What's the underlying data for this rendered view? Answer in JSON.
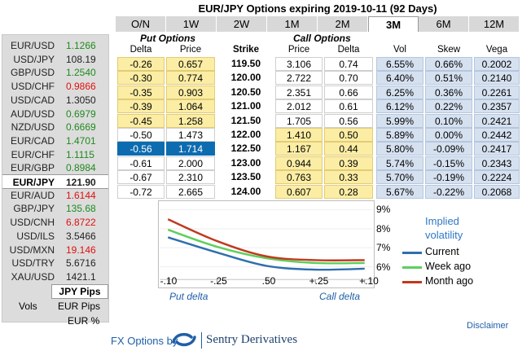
{
  "title": "EUR/JPY Options expiring 2019-10-11 (92 Days)",
  "tabs": [
    "O/N",
    "1W",
    "2W",
    "1M",
    "2M",
    "3M",
    "6M",
    "12M"
  ],
  "active_tab": "3M",
  "pairs": [
    {
      "name": "EUR/USD",
      "price": "1.1266",
      "dir": "up"
    },
    {
      "name": "USD/JPY",
      "price": "108.19",
      "dir": "nc"
    },
    {
      "name": "GBP/USD",
      "price": "1.2540",
      "dir": "up"
    },
    {
      "name": "USD/CHF",
      "price": "0.9866",
      "dir": "dn"
    },
    {
      "name": "USD/CAD",
      "price": "1.3050",
      "dir": "nc"
    },
    {
      "name": "AUD/USD",
      "price": "0.6979",
      "dir": "up"
    },
    {
      "name": "NZD/USD",
      "price": "0.6669",
      "dir": "up"
    },
    {
      "name": "EUR/CAD",
      "price": "1.4701",
      "dir": "up"
    },
    {
      "name": "EUR/CHF",
      "price": "1.1115",
      "dir": "up"
    },
    {
      "name": "EUR/GBP",
      "price": "0.8984",
      "dir": "up"
    },
    {
      "name": "EUR/JPY",
      "price": "121.90",
      "dir": "up",
      "selected": true
    },
    {
      "name": "EUR/AUD",
      "price": "1.6144",
      "dir": "dn"
    },
    {
      "name": "GBP/JPY",
      "price": "135.68",
      "dir": "up"
    },
    {
      "name": "USD/CNH",
      "price": "6.8722",
      "dir": "dn"
    },
    {
      "name": "USD/ILS",
      "price": "3.5466",
      "dir": "nc"
    },
    {
      "name": "USD/MXN",
      "price": "19.146",
      "dir": "dn"
    },
    {
      "name": "USD/TRY",
      "price": "5.6716",
      "dir": "nc"
    },
    {
      "name": "XAU/USD",
      "price": "1421.1",
      "dir": "nc"
    }
  ],
  "pips_button": "JPY Pips",
  "vols_label": "Vols",
  "vol_options": [
    "EUR Pips",
    "EUR %"
  ],
  "headers": {
    "put_options": "Put Options",
    "call_options": "Call Options",
    "columns": [
      "Delta",
      "Price",
      "Strike",
      "Price",
      "Delta",
      "Vol",
      "Skew",
      "Vega"
    ]
  },
  "rows": [
    {
      "put_delta": "-0.26",
      "put_price": "0.657",
      "strike": "119.50",
      "call_price": "3.106",
      "call_delta": "0.74",
      "vol": "6.55%",
      "skew": "0.66%",
      "vega": "0.2002"
    },
    {
      "put_delta": "-0.30",
      "put_price": "0.774",
      "strike": "120.00",
      "call_price": "2.722",
      "call_delta": "0.70",
      "vol": "6.40%",
      "skew": "0.51%",
      "vega": "0.2140"
    },
    {
      "put_delta": "-0.35",
      "put_price": "0.903",
      "strike": "120.50",
      "call_price": "2.351",
      "call_delta": "0.66",
      "vol": "6.25%",
      "skew": "0.36%",
      "vega": "0.2261"
    },
    {
      "put_delta": "-0.39",
      "put_price": "1.064",
      "strike": "121.00",
      "call_price": "2.012",
      "call_delta": "0.61",
      "vol": "6.12%",
      "skew": "0.22%",
      "vega": "0.2357"
    },
    {
      "put_delta": "-0.45",
      "put_price": "1.258",
      "strike": "121.50",
      "call_price": "1.705",
      "call_delta": "0.56",
      "vol": "5.99%",
      "skew": "0.10%",
      "vega": "0.2421"
    },
    {
      "put_delta": "-0.50",
      "put_price": "1.473",
      "strike": "122.00",
      "call_price": "1.410",
      "call_delta": "0.50",
      "vol": "5.89%",
      "skew": "0.00%",
      "vega": "0.2442"
    },
    {
      "put_delta": "-0.56",
      "put_price": "1.714",
      "strike": "122.50",
      "call_price": "1.167",
      "call_delta": "0.44",
      "vol": "5.80%",
      "skew": "-0.09%",
      "vega": "0.2417",
      "highlight": true
    },
    {
      "put_delta": "-0.61",
      "put_price": "2.000",
      "strike": "123.00",
      "call_price": "0.944",
      "call_delta": "0.39",
      "vol": "5.74%",
      "skew": "-0.15%",
      "vega": "0.2343"
    },
    {
      "put_delta": "-0.67",
      "put_price": "2.310",
      "strike": "123.50",
      "call_price": "0.763",
      "call_delta": "0.33",
      "vol": "5.70%",
      "skew": "-0.19%",
      "vega": "0.2224"
    },
    {
      "put_delta": "-0.72",
      "put_price": "2.665",
      "strike": "124.00",
      "call_price": "0.607",
      "call_delta": "0.28",
      "vol": "5.67%",
      "skew": "-0.22%",
      "vega": "0.2068"
    }
  ],
  "chart_data": {
    "type": "line",
    "title": "Implied volatility",
    "x": [
      "-.10",
      "-.25",
      ".50",
      "+.25",
      "+.10"
    ],
    "x_group_labels": [
      "Put delta",
      "Call delta"
    ],
    "y_ticks": [
      "9%",
      "8%",
      "7%",
      "6%"
    ],
    "ylim": [
      5.5,
      9.2
    ],
    "series": [
      {
        "name": "Current",
        "color": "#2f6fad",
        "values": [
          7.55,
          6.75,
          6.05,
          5.85,
          5.9
        ]
      },
      {
        "name": "Week ago",
        "color": "#5ccf5c",
        "values": [
          7.95,
          7.05,
          6.45,
          6.2,
          6.2
        ]
      },
      {
        "name": "Month ago",
        "color": "#c0391e",
        "values": [
          8.5,
          7.35,
          6.55,
          6.35,
          6.35
        ]
      }
    ]
  },
  "footer": {
    "disclaimer": "Disclaimer",
    "brand_prefix": "FX Options by",
    "brand_name": "Sentry Derivatives",
    "logo_icon": "sentry-swirl-logo"
  }
}
